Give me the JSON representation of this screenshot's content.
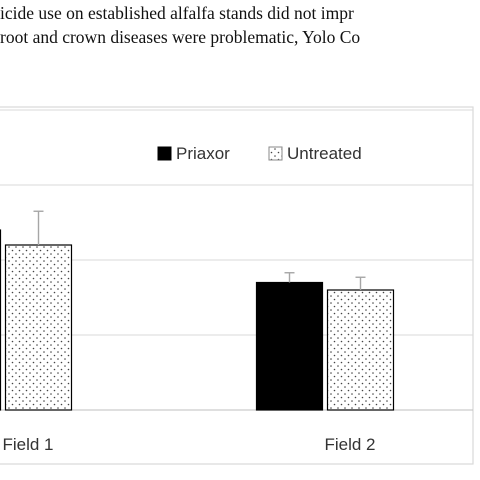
{
  "caption": {
    "line1": "icide use on established alfalfa stands did not impr",
    "line2": "root and crown diseases were problematic, Yolo Co"
  },
  "chart_data": {
    "type": "bar",
    "categories": [
      "Field 1",
      "Field 2"
    ],
    "series": [
      {
        "name": "Priaxor",
        "values": [
          2.4,
          1.7
        ],
        "errors": [
          0.0,
          0.13
        ],
        "color": "#000000",
        "pattern": "solid"
      },
      {
        "name": "Untreated",
        "values": [
          2.2,
          1.6
        ],
        "errors": [
          0.45,
          0.17
        ],
        "color": "#ffffff",
        "pattern": "dotted"
      }
    ],
    "ylim": [
      0,
      4
    ],
    "grid": true,
    "legend": "top-right"
  }
}
